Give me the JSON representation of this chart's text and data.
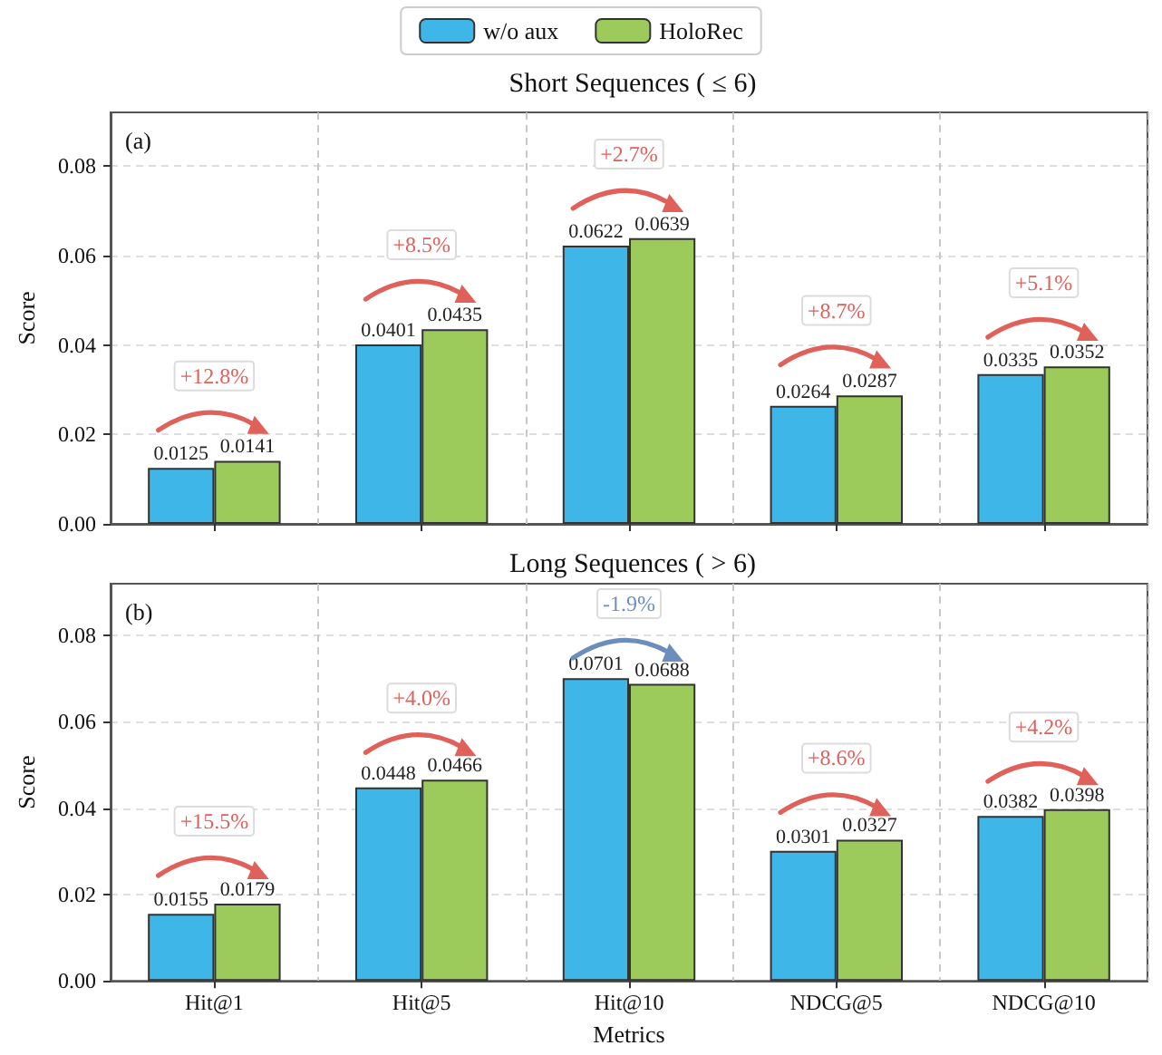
{
  "chart_data": [
    {
      "type": "bar",
      "title": "Short Sequences ( ≤ 6)",
      "ylabel": "Score",
      "categories": [
        "Hit@1",
        "Hit@5",
        "Hit@10",
        "NDCG@5",
        "NDCG@10"
      ],
      "series": [
        {
          "name": "w/o aux",
          "color": "#3fb6e8",
          "values": [
            0.0125,
            0.0401,
            0.0622,
            0.0264,
            0.0335
          ]
        },
        {
          "name": "HoloRec",
          "color": "#9ccb5b",
          "values": [
            0.0141,
            0.0435,
            0.0639,
            0.0287,
            0.0352
          ]
        }
      ],
      "ylim": [
        0,
        0.092
      ],
      "yticks": [
        {
          "value": 0,
          "label": "0.00"
        },
        0.02,
        0.04,
        0.06,
        0.08
      ],
      "grid": true,
      "legend": "top",
      "tick_labels": "y",
      "data_labels": true,
      "annotations": [
        "(a)",
        {
          "text": "+12.8%",
          "x": "Hit@1",
          "y": 0.0331
        },
        {
          "text": "+8.5%",
          "x": "Hit@5",
          "y": 0.0624
        },
        {
          "text": "+2.7%",
          "x": "Hit@10",
          "y": 0.0827
        },
        {
          "text": "+8.7%",
          "x": "NDCG@5",
          "y": 0.0477
        },
        {
          "text": "+5.1%",
          "x": "NDCG@10",
          "y": 0.0539
        }
      ]
    },
    {
      "type": "bar",
      "title": "Long Sequences ( > 6)",
      "xlabel": "Metrics",
      "ylabel": "Score",
      "categories": [
        "Hit@1",
        "Hit@5",
        "Hit@10",
        "NDCG@5",
        "NDCG@10"
      ],
      "series": [
        {
          "color": "#3fb6e8",
          "values": [
            0.0155,
            0.0448,
            0.0701,
            0.0301,
            0.0382
          ]
        },
        {
          "color": "#9ccb5b",
          "values": [
            0.0179,
            0.0466,
            0.0688,
            0.0327,
            0.0398
          ]
        }
      ],
      "ylim": [
        0,
        0.092
      ],
      "yticks": [
        {
          "value": 0,
          "label": "0.00"
        },
        0.02,
        0.04,
        0.06,
        0.08
      ],
      "grid": true,
      "data_labels": true,
      "annotations": [
        "(b)",
        {
          "text": "+15.5%",
          "x": "Hit@1",
          "y": 0.037
        },
        {
          "text": "+4.0%",
          "x": "Hit@5",
          "y": 0.0655
        },
        {
          "text": "-1.9%",
          "x": "Hit@10",
          "y": 0.0874
        },
        {
          "text": "+8.6%",
          "x": "NDCG@5",
          "y": 0.0516
        },
        {
          "text": "+4.2%",
          "x": "NDCG@10",
          "y": 0.0588
        }
      ]
    }
  ]
}
